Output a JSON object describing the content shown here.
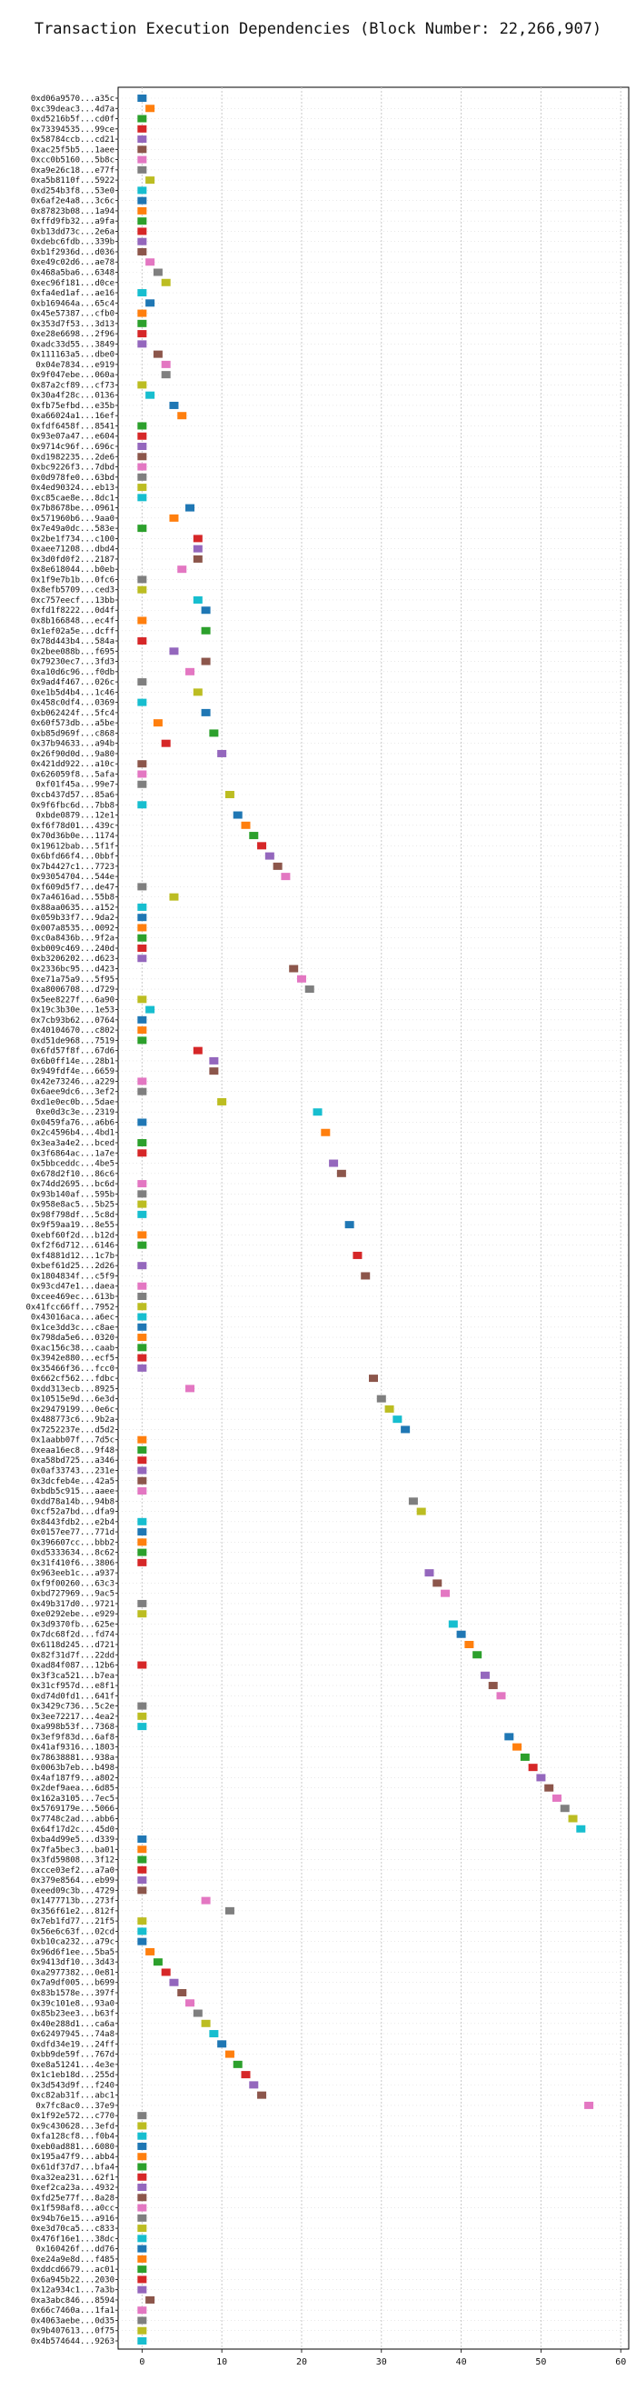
{
  "chart_data": {
    "type": "scatter",
    "title": "Transaction Execution Dependencies (Block Number: 22,266,907)",
    "xlabel": "",
    "ylabel": "",
    "xlim": [
      -3,
      61
    ],
    "x_ticks": [
      0,
      10,
      20,
      30,
      40,
      50,
      60
    ],
    "grid": true,
    "marker": "square",
    "palette": [
      "#1f77b4",
      "#ff7f0e",
      "#2ca02c",
      "#d62728",
      "#9467bd",
      "#8c564b",
      "#e377c2",
      "#7f7f7f",
      "#bcbd22",
      "#17becf"
    ],
    "transactions": [
      {
        "label": "0xd06a9570...a35c",
        "x": 0
      },
      {
        "label": "0xc39deac3...4d7a",
        "x": 1
      },
      {
        "label": "0xd5216b5f...cd0f",
        "x": 0
      },
      {
        "label": "0x73394535...99ce",
        "x": 0
      },
      {
        "label": "0x58784ccb...cd21",
        "x": 0
      },
      {
        "label": "0xac25f5b5...1aee",
        "x": 0
      },
      {
        "label": "0xcc0b5160...5b8c",
        "x": 0
      },
      {
        "label": "0xa9e26c18...e77f",
        "x": 0
      },
      {
        "label": "0xa5b8110f...5922",
        "x": 1
      },
      {
        "label": "0xd254b3f8...53e0",
        "x": 0
      },
      {
        "label": "0x6af2e4a8...3c6c",
        "x": 0
      },
      {
        "label": "0x87823b08...1a94",
        "x": 0
      },
      {
        "label": "0xffd9fb32...a9fa",
        "x": 0
      },
      {
        "label": "0xb13dd73c...2e6a",
        "x": 0
      },
      {
        "label": "0xdebc6fdb...339b",
        "x": 0
      },
      {
        "label": "0xb1f2936d...d036",
        "x": 0
      },
      {
        "label": "0xe49c02d6...ae78",
        "x": 1
      },
      {
        "label": "0x468a5ba6...6348",
        "x": 2
      },
      {
        "label": "0xec96f181...d0ce",
        "x": 3
      },
      {
        "label": "0xfa4ed1af...ae16",
        "x": 0
      },
      {
        "label": "0xb169464a...65c4",
        "x": 1
      },
      {
        "label": "0x45e57387...cfb0",
        "x": 0
      },
      {
        "label": "0x353d7f53...3d13",
        "x": 0
      },
      {
        "label": "0xe28e6698...2f96",
        "x": 0
      },
      {
        "label": "0xadc33d55...3849",
        "x": 0
      },
      {
        "label": "0x111163a5...dbe0",
        "x": 2
      },
      {
        "label": "0x04e7834...e919",
        "x": 3
      },
      {
        "label": "0x9f047ebe...060a",
        "x": 3
      },
      {
        "label": "0x87a2cf89...cf73",
        "x": 0
      },
      {
        "label": "0x30a4f28c...0136",
        "x": 1
      },
      {
        "label": "0xfb75efbd...e35b",
        "x": 4
      },
      {
        "label": "0xa66024a1...16ef",
        "x": 5
      },
      {
        "label": "0xfdf6458f...8541",
        "x": 0
      },
      {
        "label": "0x93e07a47...e604",
        "x": 0
      },
      {
        "label": "0x9714c96f...696c",
        "x": 0
      },
      {
        "label": "0xd1982235...2de6",
        "x": 0
      },
      {
        "label": "0xbc9226f3...7dbd",
        "x": 0
      },
      {
        "label": "0x0d978fe0...63bd",
        "x": 0
      },
      {
        "label": "0x4ed90324...eb13",
        "x": 0
      },
      {
        "label": "0xc85cae8e...8dc1",
        "x": 0
      },
      {
        "label": "0x7b8678be...0961",
        "x": 6
      },
      {
        "label": "0x571960b6...9aa0",
        "x": 4
      },
      {
        "label": "0x7e49a0dc...583e",
        "x": 0
      },
      {
        "label": "0x2be1f734...c100",
        "x": 7
      },
      {
        "label": "0xaee71208...dbd4",
        "x": 7
      },
      {
        "label": "0x3d0fd0f2...2187",
        "x": 7
      },
      {
        "label": "0x8e618044...b0eb",
        "x": 5
      },
      {
        "label": "0x1f9e7b1b...0fc6",
        "x": 0
      },
      {
        "label": "0x8efb5709...ced3",
        "x": 0
      },
      {
        "label": "0xc757eecf...13bb",
        "x": 7
      },
      {
        "label": "0xfd1f8222...0d4f",
        "x": 8
      },
      {
        "label": "0x8b166848...ec4f",
        "x": 0
      },
      {
        "label": "0x1ef02a5e...dcff",
        "x": 8
      },
      {
        "label": "0x78d443b4...584a",
        "x": 0
      },
      {
        "label": "0x2bee088b...f695",
        "x": 4
      },
      {
        "label": "0x79230ec7...3fd3",
        "x": 8
      },
      {
        "label": "0xa10d6c96...f0db",
        "x": 6
      },
      {
        "label": "0x9ad4f467...026c",
        "x": 0
      },
      {
        "label": "0xe1b5d4b4...1c46",
        "x": 7
      },
      {
        "label": "0x458c0df4...0369",
        "x": 0
      },
      {
        "label": "0xb062424f...5fc4",
        "x": 8
      },
      {
        "label": "0x60f573db...a5be",
        "x": 2
      },
      {
        "label": "0xb85d969f...c868",
        "x": 9
      },
      {
        "label": "0x37b94633...a94b",
        "x": 3
      },
      {
        "label": "0x26f90d0d...9a80",
        "x": 10
      },
      {
        "label": "0x421dd922...a10c",
        "x": 0
      },
      {
        "label": "0x626059f8...5afa",
        "x": 0
      },
      {
        "label": "0xf01f45a...99e7",
        "x": 0
      },
      {
        "label": "0xcb437d57...85a6",
        "x": 11
      },
      {
        "label": "0x9f6fbc6d...7bb8",
        "x": 0
      },
      {
        "label": "0xbde0879...12e1",
        "x": 12
      },
      {
        "label": "0xf6f78d01...439c",
        "x": 13
      },
      {
        "label": "0x70d36b0e...1174",
        "x": 14
      },
      {
        "label": "0x19612bab...5f1f",
        "x": 15
      },
      {
        "label": "0x6bfd66f4...0bbf",
        "x": 16
      },
      {
        "label": "0x7b4427c1...7723",
        "x": 17
      },
      {
        "label": "0x93054704...544e",
        "x": 18
      },
      {
        "label": "0xf609d5f7...de47",
        "x": 0
      },
      {
        "label": "0x7a4616ad...55b8",
        "x": 4
      },
      {
        "label": "0x88aa0635...a152",
        "x": 0
      },
      {
        "label": "0x059b33f7...9da2",
        "x": 0
      },
      {
        "label": "0x007a8535...0092",
        "x": 0
      },
      {
        "label": "0xc0a8436b...9f2a",
        "x": 0
      },
      {
        "label": "0xb009c469...240d",
        "x": 0
      },
      {
        "label": "0xb3206202...d623",
        "x": 0
      },
      {
        "label": "0x2336bc95...d423",
        "x": 19
      },
      {
        "label": "0xe71a75a9...5f95",
        "x": 20
      },
      {
        "label": "0xa8006708...d729",
        "x": 21
      },
      {
        "label": "0x5ee8227f...6a90",
        "x": 0
      },
      {
        "label": "0x19c3b30e...1e53",
        "x": 1
      },
      {
        "label": "0x7cb93b62...0764",
        "x": 0
      },
      {
        "label": "0x40104670...c802",
        "x": 0
      },
      {
        "label": "0xd51de968...7519",
        "x": 0
      },
      {
        "label": "0x6fd57f8f...67d6",
        "x": 7
      },
      {
        "label": "0x6b0ff14e...28b1",
        "x": 9
      },
      {
        "label": "0x949fdf4e...6659",
        "x": 9
      },
      {
        "label": "0x42e73246...a229",
        "x": 0
      },
      {
        "label": "0x6aee9dc6...3ef2",
        "x": 0
      },
      {
        "label": "0xd1e0ec0b...5dae",
        "x": 10
      },
      {
        "label": "0xe0d3c3e...2319",
        "x": 22
      },
      {
        "label": "0x0459fa76...a6b6",
        "x": 0
      },
      {
        "label": "0x2c4596b4...4bd1",
        "x": 23
      },
      {
        "label": "0x3ea3a4e2...bced",
        "x": 0
      },
      {
        "label": "0x3f6864ac...1a7e",
        "x": 0
      },
      {
        "label": "0x5bbceddc...4be5",
        "x": 24
      },
      {
        "label": "0x678d2f10...86c6",
        "x": 25
      },
      {
        "label": "0x74dd2695...bc6d",
        "x": 0
      },
      {
        "label": "0x93b140af...595b",
        "x": 0
      },
      {
        "label": "0x958e8ac5...5b25",
        "x": 0
      },
      {
        "label": "0x98f798df...5c8d",
        "x": 0
      },
      {
        "label": "0x9f59aa19...8e55",
        "x": 26
      },
      {
        "label": "0xebf60f2d...b12d",
        "x": 0
      },
      {
        "label": "0xf2f6d712...6146",
        "x": 0
      },
      {
        "label": "0xf4881d12...1c7b",
        "x": 27
      },
      {
        "label": "0xbef61d25...2d26",
        "x": 0
      },
      {
        "label": "0x1804834f...c5f9",
        "x": 28
      },
      {
        "label": "0x93cd47e1...daea",
        "x": 0
      },
      {
        "label": "0xcee469ec...613b",
        "x": 0
      },
      {
        "label": "0x41fcc66ff...7952",
        "x": 0
      },
      {
        "label": "0x43016aca...a6ec",
        "x": 0
      },
      {
        "label": "0x1ce3dd3c...c8ae",
        "x": 0
      },
      {
        "label": "0x798da5e6...0320",
        "x": 0
      },
      {
        "label": "0xac156c38...caab",
        "x": 0
      },
      {
        "label": "0x3942e880...ecf5",
        "x": 0
      },
      {
        "label": "0x35466f36...fcc0",
        "x": 0
      },
      {
        "label": "0x662cf562...fdbc",
        "x": 29
      },
      {
        "label": "0xdd313ecb...8925",
        "x": 6
      },
      {
        "label": "0x10515e9d...6e3d",
        "x": 30
      },
      {
        "label": "0x29479199...0e6c",
        "x": 31
      },
      {
        "label": "0x488773c6...9b2a",
        "x": 32
      },
      {
        "label": "0x7252237e...d5d2",
        "x": 33
      },
      {
        "label": "0x1aabb07f...7d5c",
        "x": 0
      },
      {
        "label": "0xeaa16ec8...9f48",
        "x": 0
      },
      {
        "label": "0xa58bd725...a346",
        "x": 0
      },
      {
        "label": "0x0af33743...231e",
        "x": 0
      },
      {
        "label": "0x3dcfeb4e...42a5",
        "x": 0
      },
      {
        "label": "0xbdb5c915...aaee",
        "x": 0
      },
      {
        "label": "0xdd78a14b...94b8",
        "x": 34
      },
      {
        "label": "0xcf52a7bd...dfa9",
        "x": 35
      },
      {
        "label": "0x8443fdb2...e2b4",
        "x": 0
      },
      {
        "label": "0x0157ee77...771d",
        "x": 0
      },
      {
        "label": "0x396607cc...bbb2",
        "x": 0
      },
      {
        "label": "0xd5333634...8c62",
        "x": 0
      },
      {
        "label": "0x31f410f6...3806",
        "x": 0
      },
      {
        "label": "0x963eeb1c...a937",
        "x": 36
      },
      {
        "label": "0xf9f00260...63c3",
        "x": 37
      },
      {
        "label": "0xbd727969...9ac5",
        "x": 38
      },
      {
        "label": "0x49b317d0...9721",
        "x": 0
      },
      {
        "label": "0xe0292ebe...e929",
        "x": 0
      },
      {
        "label": "0x3d9370fb...625e",
        "x": 39
      },
      {
        "label": "0x7dc68f2d...fd74",
        "x": 40
      },
      {
        "label": "0x6118d245...d721",
        "x": 41
      },
      {
        "label": "0x82f31d7f...22dd",
        "x": 42
      },
      {
        "label": "0xad84f087...12b6",
        "x": 0
      },
      {
        "label": "0x3f3ca521...b7ea",
        "x": 43
      },
      {
        "label": "0x31cf957d...e8f1",
        "x": 44
      },
      {
        "label": "0xd74d0fd1...641f",
        "x": 45
      },
      {
        "label": "0x3429c736...5c2e",
        "x": 0
      },
      {
        "label": "0x3ee72217...4ea2",
        "x": 0
      },
      {
        "label": "0xa998b53f...7368",
        "x": 0
      },
      {
        "label": "0x3ef9f83d...6af8",
        "x": 46
      },
      {
        "label": "0x41af9316...1803",
        "x": 47
      },
      {
        "label": "0x78638881...938a",
        "x": 48
      },
      {
        "label": "0x0063b7eb...b498",
        "x": 49
      },
      {
        "label": "0x4af187f9...a802",
        "x": 50
      },
      {
        "label": "0x2def9aea...6d85",
        "x": 51
      },
      {
        "label": "0x162a3105...7ec5",
        "x": 52
      },
      {
        "label": "0x5769179e...5066",
        "x": 53
      },
      {
        "label": "0x7748c2ad...abb6",
        "x": 54
      },
      {
        "label": "0x64f17d2c...45d0",
        "x": 55
      },
      {
        "label": "0xba4d99e5...d339",
        "x": 0
      },
      {
        "label": "0x7fa5bec3...ba01",
        "x": 0
      },
      {
        "label": "0x3fd59808...3f12",
        "x": 0
      },
      {
        "label": "0xcce03ef2...a7a0",
        "x": 0
      },
      {
        "label": "0x379e8564...eb99",
        "x": 0
      },
      {
        "label": "0xeed09c3b...4729",
        "x": 0
      },
      {
        "label": "0x1477713b...273f",
        "x": 8
      },
      {
        "label": "0x356f61e2...812f",
        "x": 11
      },
      {
        "label": "0x7eb1fd77...21f5",
        "x": 0
      },
      {
        "label": "0x56e6c63f...02cd",
        "x": 0
      },
      {
        "label": "0xb10ca232...a79c",
        "x": 0
      },
      {
        "label": "0x96d6f1ee...5ba5",
        "x": 1
      },
      {
        "label": "0x9413df10...3d43",
        "x": 2
      },
      {
        "label": "0xa2977382...0e81",
        "x": 3
      },
      {
        "label": "0x7a9df005...b699",
        "x": 4
      },
      {
        "label": "0x83b1578e...397f",
        "x": 5
      },
      {
        "label": "0x39c101e8...93a0",
        "x": 6
      },
      {
        "label": "0x85b23ee3...b63f",
        "x": 7
      },
      {
        "label": "0x40e288d1...ca6a",
        "x": 8
      },
      {
        "label": "0x62497945...74a8",
        "x": 9
      },
      {
        "label": "0xdfd34e19...24ff",
        "x": 10
      },
      {
        "label": "0xbb9de59f...767d",
        "x": 11
      },
      {
        "label": "0xe8a51241...4e3e",
        "x": 12
      },
      {
        "label": "0x1c1eb18d...255d",
        "x": 13
      },
      {
        "label": "0x3d543d9f...f240",
        "x": 14
      },
      {
        "label": "0xc82ab31f...abc1",
        "x": 15
      },
      {
        "label": "0x7fc8ac0...37e9",
        "x": 56
      },
      {
        "label": "0x1f92e572...c770",
        "x": 0
      },
      {
        "label": "0x9c430628...3efd",
        "x": 0
      },
      {
        "label": "0xfa128cf8...f0b4",
        "x": 0
      },
      {
        "label": "0xeb0ad881...6080",
        "x": 0
      },
      {
        "label": "0x195a47f9...abb4",
        "x": 0
      },
      {
        "label": "0x61df37d7...bfa4",
        "x": 0
      },
      {
        "label": "0xa32ea231...62f1",
        "x": 0
      },
      {
        "label": "0xef2ca23a...4932",
        "x": 0
      },
      {
        "label": "0xfd25e77f...8a28",
        "x": 0
      },
      {
        "label": "0x1f598af8...a0cc",
        "x": 0
      },
      {
        "label": "0x94b76e15...a916",
        "x": 0
      },
      {
        "label": "0xe3d70ca5...c833",
        "x": 0
      },
      {
        "label": "0x476f16e1...38dc",
        "x": 0
      },
      {
        "label": "0x160426f...dd76",
        "x": 0
      },
      {
        "label": "0xe24a9e8d...f485",
        "x": 0
      },
      {
        "label": "0xddcd6679...ac01",
        "x": 0
      },
      {
        "label": "0x6a945b22...2030",
        "x": 0
      },
      {
        "label": "0x12a934c1...7a3b",
        "x": 0
      },
      {
        "label": "0xa3abc846...8594",
        "x": 1
      },
      {
        "label": "0x66c7460a...1fa1",
        "x": 0
      },
      {
        "label": "0x4063aebe...0d35",
        "x": 0
      },
      {
        "label": "0x9b407613...0f75",
        "x": 0
      },
      {
        "label": "0x4b574644...9263",
        "x": 0
      }
    ]
  }
}
